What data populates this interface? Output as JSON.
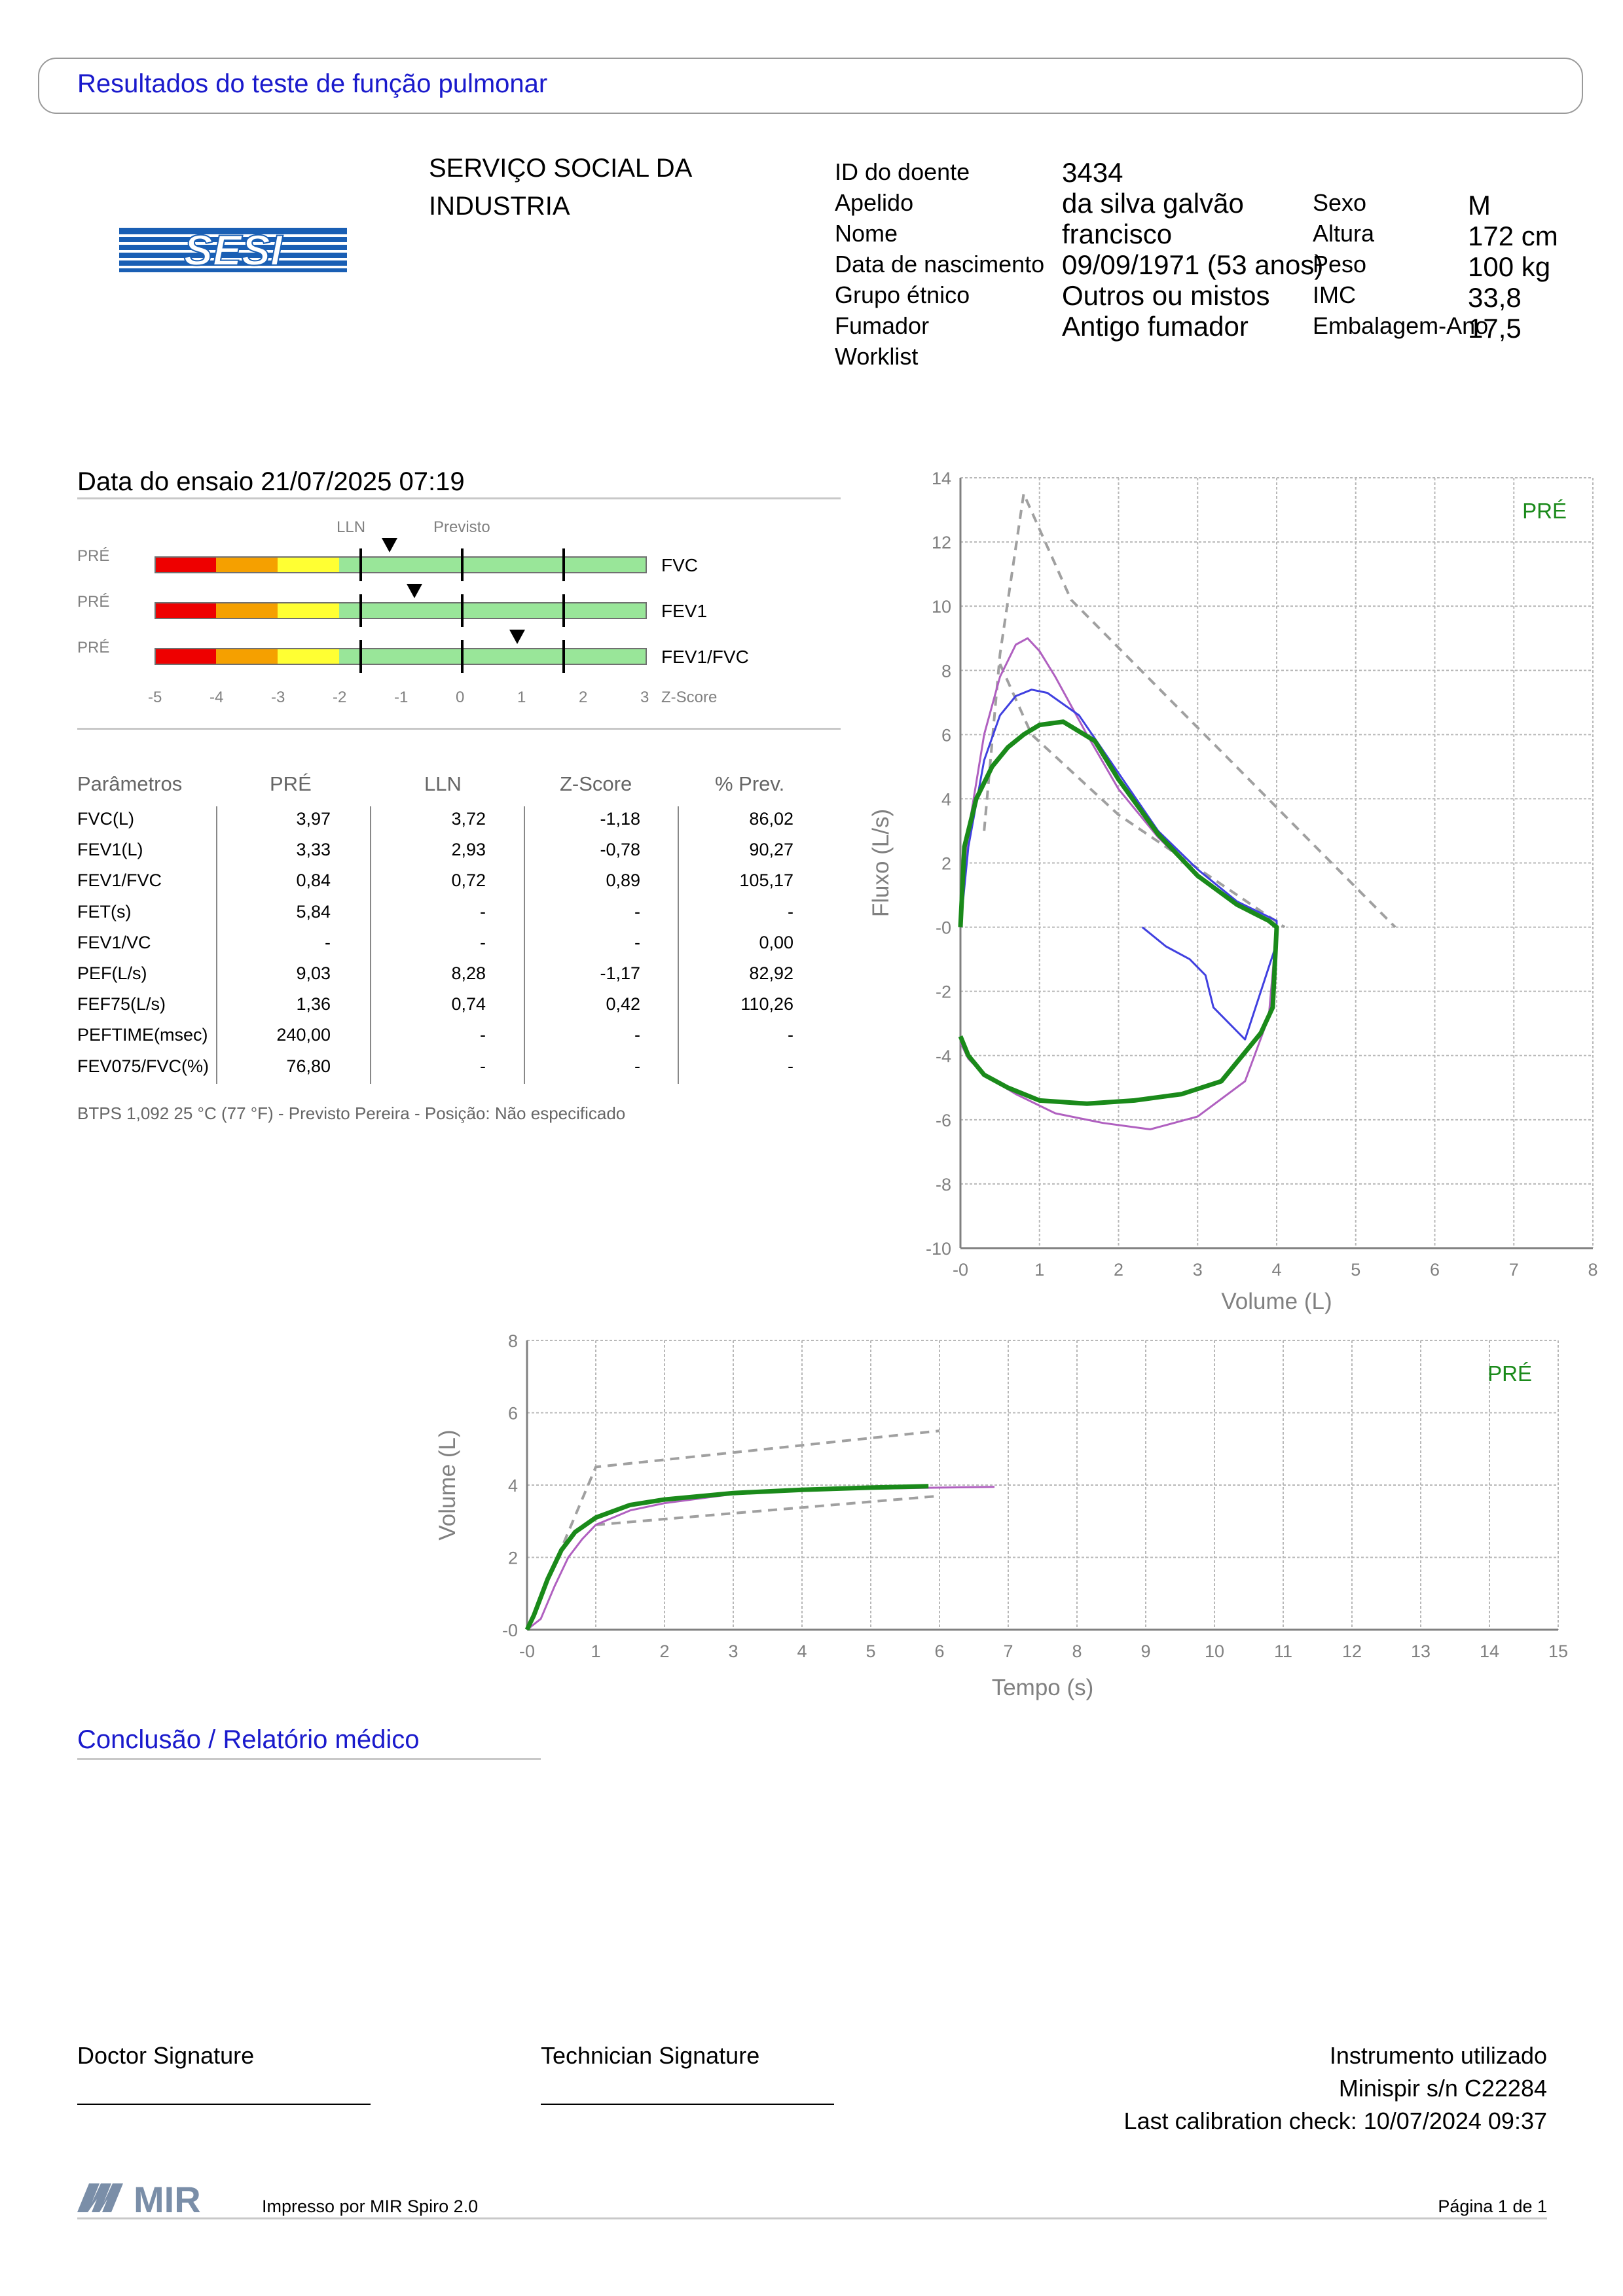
{
  "header": {
    "title": "Resultados do teste de função pulmonar"
  },
  "organization": {
    "line1": "SERVIÇO SOCIAL DA",
    "line2": "INDUSTRIA",
    "logo_text": "SESI"
  },
  "patient": {
    "left": [
      {
        "label": "ID do doente",
        "value": "3434"
      },
      {
        "label": "Apelido",
        "value": "da silva galvão"
      },
      {
        "label": "Nome",
        "value": "francisco"
      },
      {
        "label": "Data de nascimento",
        "value": "09/09/1971 (53 anos)"
      },
      {
        "label": "Grupo étnico",
        "value": "Outros ou mistos"
      },
      {
        "label": "Fumador",
        "value": "Antigo fumador"
      },
      {
        "label": "Worklist",
        "value": ""
      }
    ],
    "right": [
      {
        "label": "Sexo",
        "value": "M"
      },
      {
        "label": "Altura",
        "value": "172 cm"
      },
      {
        "label": "Peso",
        "value": "100 kg"
      },
      {
        "label": "IMC",
        "value": "33,8"
      },
      {
        "label": "Embalagem-Ano",
        "value": "17,5"
      }
    ]
  },
  "test": {
    "date_label": "Data do ensaio 21/07/2025 07:19"
  },
  "zscore_panel": {
    "lln_label": "LLN",
    "predicted_label": "Previsto",
    "axis_label": "Z-Score",
    "ticks": [
      "-5",
      "-4",
      "-3",
      "-2",
      "-1",
      "0",
      "1",
      "2",
      "3"
    ],
    "rows": [
      {
        "tag": "PRÉ",
        "name": "FVC",
        "z": -1.18
      },
      {
        "tag": "PRÉ",
        "name": "FEV1",
        "z": -0.78
      },
      {
        "tag": "PRÉ",
        "name": "FEV1/FVC",
        "z": 0.89
      }
    ],
    "zone_colors": [
      "#ee0000",
      "#f5a000",
      "#ffff33",
      "#99e699"
    ]
  },
  "params_table": {
    "headers": [
      "Parâmetros",
      "PRÉ",
      "LLN",
      "Z-Score",
      "% Prev."
    ],
    "rows": [
      [
        "FVC(L)",
        "3,97",
        "3,72",
        "-1,18",
        "86,02"
      ],
      [
        "FEV1(L)",
        "3,33",
        "2,93",
        "-0,78",
        "90,27"
      ],
      [
        "FEV1/FVC",
        "0,84",
        "0,72",
        "0,89",
        "105,17"
      ],
      [
        "FET(s)",
        "5,84",
        "-",
        "-",
        "-"
      ],
      [
        "FEV1/VC",
        "-",
        "-",
        "-",
        "0,00"
      ],
      [
        "PEF(L/s)",
        "9,03",
        "8,28",
        "-1,17",
        "82,92"
      ],
      [
        "FEF75(L/s)",
        "1,36",
        "0,74",
        "0,42",
        "110,26"
      ],
      [
        "PEFTIME(msec)",
        "240,00",
        "-",
        "-",
        "-"
      ],
      [
        "FEV075/FVC(%)",
        "76,80",
        "-",
        "-",
        "-"
      ]
    ],
    "note": "BTPS 1,092 25 °C (77 °F) - Previsto Pereira - Posição: Não especificado"
  },
  "chart_data": [
    {
      "type": "line",
      "title": "",
      "xlabel": "Volume (L)",
      "ylabel": "Fluxo (L/s)",
      "xlim": [
        0,
        8
      ],
      "ylim": [
        -10,
        14
      ],
      "x_ticks": [
        "-0",
        "1",
        "2",
        "3",
        "4",
        "5",
        "6",
        "7",
        "8"
      ],
      "y_ticks": [
        "-10",
        "-8",
        "-6",
        "-4",
        "-2",
        "-0",
        "2",
        "4",
        "6",
        "8",
        "10",
        "12",
        "14"
      ],
      "legend_label": "PRÉ",
      "series": [
        {
          "color": "#a0a0a0",
          "dashed": true,
          "x": [
            0.3,
            0.5,
            0.8,
            1.4,
            5.5
          ],
          "y": [
            3.0,
            8.5,
            13.5,
            10.2,
            0
          ]
        },
        {
          "color": "#a0a0a0",
          "dashed": true,
          "x": [
            0.5,
            0.9,
            2.0,
            3.5,
            4.1
          ],
          "y": [
            8.2,
            6.0,
            3.5,
            1.0,
            0
          ]
        },
        {
          "color": "#b060c0",
          "x": [
            0,
            0.1,
            0.3,
            0.5,
            0.7,
            0.85,
            1.0,
            1.2,
            1.6,
            2.0,
            2.5,
            3.0,
            3.5,
            3.9,
            4.0,
            3.9,
            3.6,
            3.0,
            2.4,
            1.8,
            1.2,
            0.7,
            0.3,
            0.1,
            0
          ],
          "y": [
            0,
            3.0,
            6.0,
            7.8,
            8.8,
            9.0,
            8.6,
            7.8,
            6.0,
            4.3,
            2.8,
            1.6,
            0.7,
            0.2,
            0,
            -2.8,
            -4.8,
            -5.9,
            -6.3,
            -6.1,
            -5.8,
            -5.2,
            -4.6,
            -4.1,
            -3.6
          ]
        },
        {
          "color": "#4040e0",
          "x": [
            0,
            0.1,
            0.3,
            0.5,
            0.7,
            0.9,
            1.1,
            1.5,
            2.0,
            2.5,
            3.0,
            3.5,
            4.0,
            4.0,
            3.6,
            3.2,
            3.1,
            2.9,
            2.6,
            2.3
          ],
          "y": [
            0,
            2.5,
            5.2,
            6.6,
            7.2,
            7.4,
            7.3,
            6.6,
            4.8,
            3.0,
            1.8,
            0.8,
            0.2,
            -0.5,
            -3.5,
            -2.5,
            -1.5,
            -1.0,
            -0.6,
            0
          ]
        },
        {
          "color": "#1a8a1a",
          "bold": true,
          "x": [
            0,
            0.05,
            0.2,
            0.4,
            0.6,
            0.8,
            1.0,
            1.3,
            1.7,
            2.0,
            2.5,
            3.0,
            3.5,
            3.9,
            4.0,
            3.95,
            3.8,
            3.3,
            2.8,
            2.2,
            1.6,
            1.0,
            0.6,
            0.3,
            0.1,
            0
          ],
          "y": [
            0,
            2.5,
            4.0,
            5.0,
            5.6,
            6.0,
            6.3,
            6.4,
            5.8,
            4.6,
            2.9,
            1.6,
            0.7,
            0.2,
            0,
            -2.5,
            -3.3,
            -4.8,
            -5.2,
            -5.4,
            -5.5,
            -5.4,
            -5.0,
            -4.6,
            -4.0,
            -3.4
          ]
        }
      ]
    },
    {
      "type": "line",
      "title": "",
      "xlabel": "Tempo (s)",
      "ylabel": "Volume (L)",
      "xlim": [
        0,
        15
      ],
      "ylim": [
        0,
        8
      ],
      "x_ticks": [
        "-0",
        "1",
        "2",
        "3",
        "4",
        "5",
        "6",
        "7",
        "8",
        "9",
        "10",
        "11",
        "12",
        "13",
        "14",
        "15"
      ],
      "y_ticks": [
        "-0",
        "2",
        "4",
        "6",
        "8"
      ],
      "legend_label": "PRÉ",
      "series": [
        {
          "color": "#a0a0a0",
          "dashed": true,
          "x": [
            0,
            1.0,
            6.0
          ],
          "y": [
            0,
            4.5,
            5.5
          ]
        },
        {
          "color": "#a0a0a0",
          "dashed": true,
          "x": [
            1.0,
            6.0
          ],
          "y": [
            2.9,
            3.7
          ]
        },
        {
          "color": "#b060c0",
          "x": [
            0,
            0.2,
            0.4,
            0.6,
            0.8,
            1.0,
            1.5,
            2.0,
            3.0,
            4.0,
            5.0,
            6.0,
            6.8
          ],
          "y": [
            0,
            0.3,
            1.2,
            2.0,
            2.5,
            2.9,
            3.3,
            3.5,
            3.75,
            3.85,
            3.9,
            3.93,
            3.95
          ]
        },
        {
          "color": "#1a8a1a",
          "bold": true,
          "x": [
            0,
            0.1,
            0.3,
            0.5,
            0.7,
            1.0,
            1.5,
            2.0,
            3.0,
            4.0,
            5.0,
            5.84
          ],
          "y": [
            0,
            0.4,
            1.4,
            2.2,
            2.7,
            3.1,
            3.45,
            3.6,
            3.78,
            3.87,
            3.93,
            3.97
          ]
        }
      ]
    }
  ],
  "conclusion": {
    "title": "Conclusão / Relatório médico"
  },
  "signatures": {
    "doctor": "Doctor Signature",
    "technician": "Technician Signature"
  },
  "instrument": {
    "line1": "Instrumento utilizado",
    "line2": "Minispir s/n C22284",
    "line3": "Last calibration check: 10/07/2024 09:37"
  },
  "footer": {
    "logo_text": "MIR",
    "printed_by": "Impresso por MIR Spiro 2.0",
    "page": "Página 1 de 1"
  }
}
